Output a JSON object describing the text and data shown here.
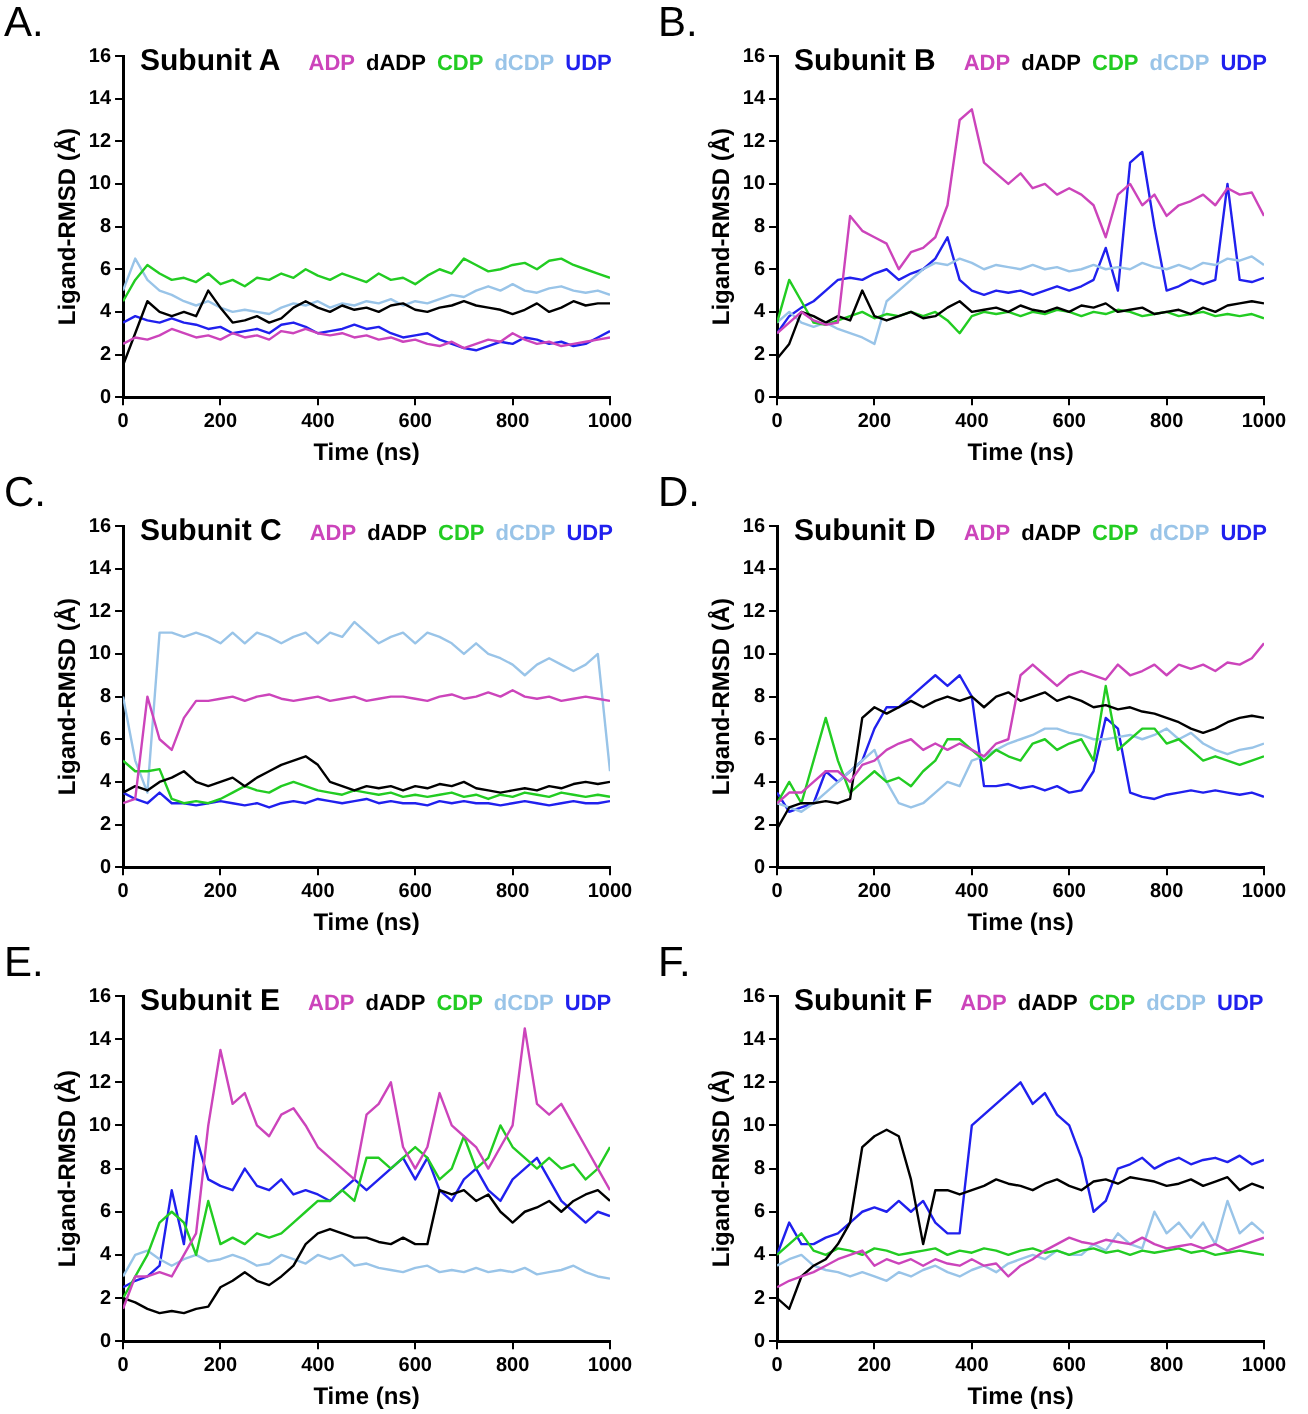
{
  "chart_data": [
    {
      "type": "line",
      "title": "Subunit A",
      "annotations": [
        "A."
      ],
      "xlabel": "Time (ns)",
      "ylabel": "Ligand-RMSD (Å)",
      "xlim": [
        0,
        1000
      ],
      "xticks": [
        0,
        200,
        400,
        600,
        800,
        1000
      ],
      "ylim": [
        0,
        16
      ],
      "yticks": [
        0,
        2,
        4,
        6,
        8,
        10,
        12,
        14,
        16
      ],
      "grid": false,
      "legend": "top",
      "marker": "none",
      "line_style": "solid",
      "x": [
        0,
        25,
        50,
        75,
        100,
        125,
        150,
        175,
        200,
        225,
        250,
        275,
        300,
        325,
        350,
        375,
        400,
        425,
        450,
        475,
        500,
        525,
        550,
        575,
        600,
        625,
        650,
        675,
        700,
        725,
        750,
        775,
        800,
        825,
        850,
        875,
        900,
        925,
        950,
        975,
        1000
      ],
      "series": [
        {
          "name": "ADP",
          "color": "#cc44bb",
          "values": [
            2.5,
            2.8,
            2.7,
            2.9,
            3.2,
            3.0,
            2.8,
            2.9,
            2.7,
            3.0,
            2.8,
            2.9,
            2.7,
            3.1,
            3.0,
            3.2,
            3.0,
            2.9,
            3.0,
            2.8,
            2.9,
            2.7,
            2.8,
            2.6,
            2.7,
            2.5,
            2.4,
            2.6,
            2.3,
            2.5,
            2.7,
            2.6,
            3.0,
            2.7,
            2.5,
            2.6,
            2.4,
            2.5,
            2.6,
            2.7,
            2.8
          ]
        },
        {
          "name": "dADP",
          "color": "#000000",
          "values": [
            1.5,
            3.0,
            4.5,
            4.0,
            3.8,
            4.0,
            3.8,
            5.0,
            4.2,
            3.5,
            3.6,
            3.8,
            3.5,
            3.7,
            4.2,
            4.5,
            4.2,
            4.0,
            4.3,
            4.1,
            4.2,
            4.0,
            4.3,
            4.4,
            4.1,
            4.0,
            4.2,
            4.3,
            4.5,
            4.3,
            4.2,
            4.1,
            3.9,
            4.1,
            4.4,
            4.0,
            4.2,
            4.5,
            4.3,
            4.4,
            4.4
          ]
        },
        {
          "name": "CDP",
          "color": "#22cc22",
          "values": [
            4.5,
            5.5,
            6.2,
            5.8,
            5.5,
            5.6,
            5.4,
            5.8,
            5.3,
            5.5,
            5.2,
            5.6,
            5.5,
            5.8,
            5.6,
            6.0,
            5.7,
            5.5,
            5.8,
            5.6,
            5.4,
            5.8,
            5.5,
            5.6,
            5.3,
            5.7,
            6.0,
            5.8,
            6.5,
            6.2,
            5.9,
            6.0,
            6.2,
            6.3,
            6.0,
            6.4,
            6.5,
            6.2,
            6.0,
            5.8,
            5.6
          ]
        },
        {
          "name": "dCDP",
          "color": "#99c4e8",
          "values": [
            5.0,
            6.5,
            5.5,
            5.0,
            4.8,
            4.5,
            4.3,
            4.5,
            4.2,
            4.0,
            4.1,
            4.0,
            3.9,
            4.2,
            4.4,
            4.3,
            4.5,
            4.2,
            4.4,
            4.3,
            4.5,
            4.4,
            4.6,
            4.3,
            4.5,
            4.4,
            4.6,
            4.8,
            4.7,
            5.0,
            5.2,
            5.0,
            5.3,
            5.0,
            4.9,
            5.1,
            5.2,
            5.0,
            4.9,
            5.0,
            4.8
          ]
        },
        {
          "name": "UDP",
          "color": "#2020ee",
          "values": [
            3.5,
            3.8,
            3.6,
            3.5,
            3.7,
            3.5,
            3.4,
            3.2,
            3.3,
            3.0,
            3.1,
            3.2,
            3.0,
            3.4,
            3.5,
            3.3,
            3.0,
            3.1,
            3.2,
            3.4,
            3.2,
            3.3,
            3.0,
            2.8,
            2.9,
            3.0,
            2.7,
            2.5,
            2.3,
            2.2,
            2.4,
            2.6,
            2.5,
            2.8,
            2.7,
            2.5,
            2.6,
            2.4,
            2.5,
            2.8,
            3.1
          ]
        }
      ]
    },
    {
      "type": "line",
      "title": "Subunit B",
      "annotations": [
        "B."
      ],
      "xlabel": "Time (ns)",
      "ylabel": "Ligand-RMSD (Å)",
      "xlim": [
        0,
        1000
      ],
      "xticks": [
        0,
        200,
        400,
        600,
        800,
        1000
      ],
      "ylim": [
        0,
        16
      ],
      "yticks": [
        0,
        2,
        4,
        6,
        8,
        10,
        12,
        14,
        16
      ],
      "grid": false,
      "legend": "top",
      "marker": "none",
      "line_style": "solid",
      "x": [
        0,
        25,
        50,
        75,
        100,
        125,
        150,
        175,
        200,
        225,
        250,
        275,
        300,
        325,
        350,
        375,
        400,
        425,
        450,
        475,
        500,
        525,
        550,
        575,
        600,
        625,
        650,
        675,
        700,
        725,
        750,
        775,
        800,
        825,
        850,
        875,
        900,
        925,
        950,
        975,
        1000
      ],
      "series": [
        {
          "name": "ADP",
          "color": "#cc44bb",
          "values": [
            3.0,
            3.5,
            4.0,
            3.6,
            3.4,
            3.5,
            8.5,
            7.8,
            7.5,
            7.2,
            6.0,
            6.8,
            7.0,
            7.5,
            9.0,
            13.0,
            13.5,
            11.0,
            10.5,
            10.0,
            10.5,
            9.8,
            10.0,
            9.5,
            9.8,
            9.5,
            9.0,
            7.5,
            9.5,
            10.0,
            9.0,
            9.5,
            8.5,
            9.0,
            9.2,
            9.5,
            9.0,
            9.8,
            9.5,
            9.6,
            8.5
          ]
        },
        {
          "name": "dADP",
          "color": "#000000",
          "values": [
            1.8,
            2.5,
            4.0,
            3.8,
            3.5,
            3.8,
            3.6,
            5.0,
            3.8,
            3.6,
            3.8,
            4.0,
            3.7,
            3.8,
            4.2,
            4.5,
            4.0,
            4.1,
            4.2,
            4.0,
            4.3,
            4.1,
            4.0,
            4.2,
            4.0,
            4.3,
            4.2,
            4.4,
            4.0,
            4.1,
            4.2,
            3.9,
            4.0,
            4.1,
            3.9,
            4.2,
            4.0,
            4.3,
            4.4,
            4.5,
            4.4
          ]
        },
        {
          "name": "CDP",
          "color": "#22cc22",
          "values": [
            3.5,
            5.5,
            4.5,
            3.5,
            3.4,
            3.6,
            3.8,
            4.0,
            3.7,
            3.9,
            3.8,
            4.0,
            3.8,
            4.0,
            3.6,
            3.0,
            3.8,
            4.0,
            3.9,
            4.0,
            3.8,
            4.0,
            3.9,
            4.1,
            4.0,
            3.8,
            4.0,
            3.9,
            4.1,
            4.0,
            3.8,
            3.9,
            4.0,
            3.8,
            3.9,
            4.0,
            3.8,
            3.9,
            3.8,
            3.9,
            3.7
          ]
        },
        {
          "name": "dCDP",
          "color": "#99c4e8",
          "values": [
            3.5,
            4.0,
            3.5,
            3.3,
            3.5,
            3.2,
            3.0,
            2.8,
            2.5,
            4.5,
            5.0,
            5.5,
            6.0,
            6.3,
            6.2,
            6.5,
            6.3,
            6.0,
            6.2,
            6.1,
            6.0,
            6.2,
            6.0,
            6.1,
            5.9,
            6.0,
            6.2,
            6.0,
            6.1,
            6.0,
            6.3,
            6.1,
            6.0,
            6.2,
            6.0,
            6.3,
            6.2,
            6.5,
            6.4,
            6.6,
            6.2
          ]
        },
        {
          "name": "UDP",
          "color": "#2020ee",
          "values": [
            3.0,
            3.8,
            4.2,
            4.5,
            5.0,
            5.5,
            5.6,
            5.5,
            5.8,
            6.0,
            5.5,
            5.8,
            6.0,
            6.5,
            7.5,
            5.5,
            5.0,
            4.8,
            5.0,
            4.9,
            5.0,
            4.8,
            5.0,
            5.2,
            5.0,
            5.2,
            5.5,
            7.0,
            5.0,
            11.0,
            11.5,
            8.0,
            5.0,
            5.2,
            5.5,
            5.3,
            5.5,
            10.0,
            5.5,
            5.4,
            5.6
          ]
        }
      ]
    },
    {
      "type": "line",
      "title": "Subunit C",
      "annotations": [
        "C."
      ],
      "xlabel": "Time (ns)",
      "ylabel": "Ligand-RMSD (Å)",
      "xlim": [
        0,
        1000
      ],
      "xticks": [
        0,
        200,
        400,
        600,
        800,
        1000
      ],
      "ylim": [
        0,
        16
      ],
      "yticks": [
        0,
        2,
        4,
        6,
        8,
        10,
        12,
        14,
        16
      ],
      "grid": false,
      "legend": "top",
      "marker": "none",
      "line_style": "solid",
      "x": [
        0,
        25,
        50,
        75,
        100,
        125,
        150,
        175,
        200,
        225,
        250,
        275,
        300,
        325,
        350,
        375,
        400,
        425,
        450,
        475,
        500,
        525,
        550,
        575,
        600,
        625,
        650,
        675,
        700,
        725,
        750,
        775,
        800,
        825,
        850,
        875,
        900,
        925,
        950,
        975,
        1000
      ],
      "series": [
        {
          "name": "ADP",
          "color": "#cc44bb",
          "values": [
            3.0,
            3.2,
            8.0,
            6.0,
            5.5,
            7.0,
            7.8,
            7.8,
            7.9,
            8.0,
            7.8,
            8.0,
            8.1,
            7.9,
            7.8,
            7.9,
            8.0,
            7.8,
            7.9,
            8.0,
            7.8,
            7.9,
            8.0,
            8.0,
            7.9,
            7.8,
            8.0,
            8.1,
            7.9,
            8.0,
            8.2,
            8.0,
            8.3,
            8.0,
            7.9,
            8.0,
            7.8,
            7.9,
            8.0,
            7.9,
            7.8
          ]
        },
        {
          "name": "dADP",
          "color": "#000000",
          "values": [
            3.5,
            3.8,
            3.6,
            4.0,
            4.2,
            4.5,
            4.0,
            3.8,
            4.0,
            4.2,
            3.8,
            4.2,
            4.5,
            4.8,
            5.0,
            5.2,
            4.8,
            4.0,
            3.8,
            3.6,
            3.8,
            3.7,
            3.8,
            3.6,
            3.8,
            3.7,
            3.9,
            3.8,
            4.0,
            3.7,
            3.6,
            3.5,
            3.6,
            3.7,
            3.6,
            3.8,
            3.7,
            3.9,
            4.0,
            3.9,
            4.0
          ]
        },
        {
          "name": "CDP",
          "color": "#22cc22",
          "values": [
            5.0,
            4.5,
            4.5,
            4.6,
            3.2,
            3.0,
            3.1,
            3.0,
            3.2,
            3.5,
            3.8,
            3.6,
            3.5,
            3.8,
            4.0,
            3.8,
            3.6,
            3.5,
            3.4,
            3.6,
            3.5,
            3.4,
            3.5,
            3.3,
            3.4,
            3.3,
            3.4,
            3.5,
            3.3,
            3.4,
            3.2,
            3.4,
            3.3,
            3.5,
            3.4,
            3.3,
            3.5,
            3.4,
            3.3,
            3.4,
            3.3
          ]
        },
        {
          "name": "dCDP",
          "color": "#99c4e8",
          "values": [
            8.0,
            5.0,
            3.5,
            11.0,
            11.0,
            10.8,
            11.0,
            10.8,
            10.5,
            11.0,
            10.5,
            11.0,
            10.8,
            10.5,
            10.8,
            11.0,
            10.5,
            11.0,
            10.8,
            11.5,
            11.0,
            10.5,
            10.8,
            11.0,
            10.5,
            11.0,
            10.8,
            10.5,
            10.0,
            10.5,
            10.0,
            9.8,
            9.5,
            9.0,
            9.5,
            9.8,
            9.5,
            9.2,
            9.5,
            10.0,
            4.5
          ]
        },
        {
          "name": "UDP",
          "color": "#2020ee",
          "values": [
            3.5,
            3.2,
            3.0,
            3.5,
            3.0,
            3.0,
            2.9,
            3.0,
            3.1,
            3.0,
            2.9,
            3.0,
            2.8,
            3.0,
            3.1,
            3.0,
            3.2,
            3.1,
            3.0,
            3.1,
            3.2,
            3.0,
            3.1,
            3.0,
            3.0,
            2.9,
            3.1,
            3.0,
            3.1,
            3.0,
            3.0,
            2.9,
            3.0,
            3.1,
            3.0,
            2.9,
            3.0,
            3.1,
            3.0,
            3.0,
            3.1
          ]
        }
      ]
    },
    {
      "type": "line",
      "title": "Subunit D",
      "annotations": [
        "D."
      ],
      "xlabel": "Time (ns)",
      "ylabel": "Ligand-RMSD (Å)",
      "xlim": [
        0,
        1000
      ],
      "xticks": [
        0,
        200,
        400,
        600,
        800,
        1000
      ],
      "ylim": [
        0,
        16
      ],
      "yticks": [
        0,
        2,
        4,
        6,
        8,
        10,
        12,
        14,
        16
      ],
      "grid": false,
      "legend": "top",
      "marker": "none",
      "line_style": "solid",
      "x": [
        0,
        25,
        50,
        75,
        100,
        125,
        150,
        175,
        200,
        225,
        250,
        275,
        300,
        325,
        350,
        375,
        400,
        425,
        450,
        475,
        500,
        525,
        550,
        575,
        600,
        625,
        650,
        675,
        700,
        725,
        750,
        775,
        800,
        825,
        850,
        875,
        900,
        925,
        950,
        975,
        1000
      ],
      "series": [
        {
          "name": "ADP",
          "color": "#cc44bb",
          "values": [
            3.0,
            3.5,
            3.5,
            4.0,
            4.5,
            4.5,
            4.0,
            4.8,
            5.0,
            5.5,
            5.8,
            6.0,
            5.5,
            5.8,
            5.5,
            5.8,
            5.5,
            5.2,
            5.8,
            6.0,
            9.0,
            9.5,
            9.0,
            8.5,
            9.0,
            9.2,
            9.0,
            8.8,
            9.5,
            9.0,
            9.2,
            9.5,
            9.0,
            9.5,
            9.3,
            9.5,
            9.2,
            9.6,
            9.5,
            9.8,
            10.5
          ]
        },
        {
          "name": "dADP",
          "color": "#000000",
          "values": [
            1.8,
            2.8,
            3.0,
            3.0,
            3.1,
            3.0,
            3.2,
            7.0,
            7.5,
            7.2,
            7.5,
            7.8,
            7.5,
            7.8,
            8.0,
            7.8,
            8.0,
            7.5,
            8.0,
            8.2,
            7.8,
            8.0,
            8.2,
            7.8,
            8.0,
            7.8,
            7.5,
            7.6,
            7.4,
            7.5,
            7.3,
            7.2,
            7.0,
            6.8,
            6.5,
            6.3,
            6.5,
            6.8,
            7.0,
            7.1,
            7.0
          ]
        },
        {
          "name": "CDP",
          "color": "#22cc22",
          "values": [
            3.0,
            4.0,
            3.0,
            5.0,
            7.0,
            5.0,
            3.5,
            4.0,
            4.5,
            4.0,
            4.2,
            3.8,
            4.5,
            5.0,
            6.0,
            6.0,
            5.5,
            5.0,
            5.5,
            5.2,
            5.0,
            5.8,
            6.0,
            5.5,
            5.8,
            6.0,
            5.0,
            8.5,
            5.5,
            6.0,
            6.5,
            6.5,
            5.8,
            6.0,
            5.5,
            5.0,
            5.2,
            5.0,
            4.8,
            5.0,
            5.2
          ]
        },
        {
          "name": "dCDP",
          "color": "#99c4e8",
          "values": [
            3.0,
            2.8,
            2.6,
            3.0,
            3.5,
            4.0,
            4.5,
            5.0,
            5.5,
            4.0,
            3.0,
            2.8,
            3.0,
            3.5,
            4.0,
            3.8,
            5.0,
            5.2,
            5.5,
            5.8,
            6.0,
            6.2,
            6.5,
            6.5,
            6.3,
            6.2,
            6.0,
            6.0,
            6.1,
            6.2,
            6.0,
            6.2,
            6.5,
            6.0,
            6.3,
            5.8,
            5.5,
            5.3,
            5.5,
            5.6,
            5.8
          ]
        },
        {
          "name": "UDP",
          "color": "#2020ee",
          "values": [
            3.5,
            2.6,
            2.8,
            3.0,
            4.5,
            4.0,
            4.5,
            5.0,
            6.5,
            7.5,
            7.5,
            8.0,
            8.5,
            9.0,
            8.5,
            9.0,
            8.0,
            3.8,
            3.8,
            3.9,
            3.7,
            3.8,
            3.6,
            3.8,
            3.5,
            3.6,
            4.5,
            7.0,
            6.5,
            3.5,
            3.3,
            3.2,
            3.4,
            3.5,
            3.6,
            3.5,
            3.6,
            3.5,
            3.4,
            3.5,
            3.3
          ]
        }
      ]
    },
    {
      "type": "line",
      "title": "Subunit E",
      "annotations": [
        "E."
      ],
      "xlabel": "Time (ns)",
      "ylabel": "Ligand-RMSD (Å)",
      "xlim": [
        0,
        1000
      ],
      "xticks": [
        0,
        200,
        400,
        600,
        800,
        1000
      ],
      "ylim": [
        0,
        16
      ],
      "yticks": [
        0,
        2,
        4,
        6,
        8,
        10,
        12,
        14,
        16
      ],
      "grid": false,
      "legend": "top",
      "marker": "none",
      "line_style": "solid",
      "x": [
        0,
        25,
        50,
        75,
        100,
        125,
        150,
        175,
        200,
        225,
        250,
        275,
        300,
        325,
        350,
        375,
        400,
        425,
        450,
        475,
        500,
        525,
        550,
        575,
        600,
        625,
        650,
        675,
        700,
        725,
        750,
        775,
        800,
        825,
        850,
        875,
        900,
        925,
        950,
        975,
        1000
      ],
      "series": [
        {
          "name": "ADP",
          "color": "#cc44bb",
          "values": [
            1.5,
            3.0,
            3.0,
            3.2,
            3.0,
            4.0,
            5.0,
            10.0,
            13.5,
            11.0,
            11.5,
            10.0,
            9.5,
            10.5,
            10.8,
            10.0,
            9.0,
            8.5,
            8.0,
            7.5,
            10.5,
            11.0,
            12.0,
            9.0,
            8.0,
            9.0,
            11.5,
            10.0,
            9.5,
            9.0,
            8.0,
            9.0,
            10.0,
            14.5,
            11.0,
            10.5,
            11.0,
            10.0,
            9.0,
            8.0,
            7.0
          ]
        },
        {
          "name": "dADP",
          "color": "#000000",
          "values": [
            2.0,
            1.8,
            1.5,
            1.3,
            1.4,
            1.3,
            1.5,
            1.6,
            2.5,
            2.8,
            3.2,
            2.8,
            2.6,
            3.0,
            3.5,
            4.5,
            5.0,
            5.2,
            5.0,
            4.8,
            4.8,
            4.6,
            4.5,
            4.8,
            4.5,
            4.5,
            7.0,
            6.8,
            7.0,
            6.5,
            6.8,
            6.0,
            5.5,
            6.0,
            6.2,
            6.5,
            6.0,
            6.5,
            6.8,
            7.0,
            6.5
          ]
        },
        {
          "name": "CDP",
          "color": "#22cc22",
          "values": [
            2.0,
            3.0,
            4.0,
            5.5,
            6.0,
            5.5,
            4.0,
            6.5,
            4.5,
            4.8,
            4.5,
            5.0,
            4.8,
            5.0,
            5.5,
            6.0,
            6.5,
            6.5,
            7.0,
            6.5,
            8.5,
            8.5,
            8.0,
            8.5,
            9.0,
            8.5,
            7.5,
            8.0,
            9.5,
            8.0,
            8.5,
            10.0,
            9.0,
            8.5,
            8.0,
            8.5,
            8.0,
            8.2,
            7.5,
            8.0,
            9.0
          ]
        },
        {
          "name": "dCDP",
          "color": "#99c4e8",
          "values": [
            3.0,
            4.0,
            4.2,
            3.8,
            3.5,
            3.8,
            4.0,
            3.7,
            3.8,
            4.0,
            3.8,
            3.5,
            3.6,
            4.0,
            3.8,
            3.6,
            4.0,
            3.8,
            4.0,
            3.5,
            3.6,
            3.4,
            3.3,
            3.2,
            3.4,
            3.5,
            3.2,
            3.3,
            3.2,
            3.4,
            3.2,
            3.3,
            3.2,
            3.4,
            3.1,
            3.2,
            3.3,
            3.5,
            3.2,
            3.0,
            2.9
          ]
        },
        {
          "name": "UDP",
          "color": "#2020ee",
          "values": [
            2.5,
            2.8,
            3.0,
            3.5,
            7.0,
            4.5,
            9.5,
            7.5,
            7.2,
            7.0,
            8.0,
            7.2,
            7.0,
            7.5,
            6.8,
            7.0,
            6.8,
            6.5,
            7.0,
            7.5,
            7.0,
            7.5,
            8.0,
            8.5,
            7.5,
            8.5,
            7.0,
            6.5,
            7.5,
            8.0,
            7.0,
            6.5,
            7.5,
            8.0,
            8.5,
            7.5,
            6.5,
            6.0,
            5.5,
            6.0,
            5.8
          ]
        }
      ]
    },
    {
      "type": "line",
      "title": "Subunit F",
      "annotations": [
        "F."
      ],
      "xlabel": "Time (ns)",
      "ylabel": "Ligand-RMSD (Å)",
      "xlim": [
        0,
        1000
      ],
      "xticks": [
        0,
        200,
        400,
        600,
        800,
        1000
      ],
      "ylim": [
        0,
        16
      ],
      "yticks": [
        0,
        2,
        4,
        6,
        8,
        10,
        12,
        14,
        16
      ],
      "grid": false,
      "legend": "top",
      "marker": "none",
      "line_style": "solid",
      "x": [
        0,
        25,
        50,
        75,
        100,
        125,
        150,
        175,
        200,
        225,
        250,
        275,
        300,
        325,
        350,
        375,
        400,
        425,
        450,
        475,
        500,
        525,
        550,
        575,
        600,
        625,
        650,
        675,
        700,
        725,
        750,
        775,
        800,
        825,
        850,
        875,
        900,
        925,
        950,
        975,
        1000
      ],
      "series": [
        {
          "name": "ADP",
          "color": "#cc44bb",
          "values": [
            2.5,
            2.8,
            3.0,
            3.2,
            3.5,
            3.8,
            4.0,
            4.2,
            3.5,
            3.8,
            3.6,
            3.8,
            3.5,
            3.8,
            3.6,
            3.5,
            3.8,
            3.5,
            3.6,
            3.0,
            3.5,
            3.8,
            4.2,
            4.5,
            4.8,
            4.6,
            4.5,
            4.7,
            4.6,
            4.5,
            4.8,
            4.5,
            4.3,
            4.4,
            4.5,
            4.3,
            4.5,
            4.2,
            4.4,
            4.6,
            4.8
          ]
        },
        {
          "name": "dADP",
          "color": "#000000",
          "values": [
            2.0,
            1.5,
            3.0,
            3.5,
            3.8,
            4.5,
            5.5,
            9.0,
            9.5,
            9.8,
            9.5,
            7.5,
            4.5,
            7.0,
            7.0,
            6.8,
            7.0,
            7.2,
            7.5,
            7.3,
            7.2,
            7.0,
            7.3,
            7.5,
            7.2,
            7.0,
            7.4,
            7.5,
            7.3,
            7.6,
            7.5,
            7.4,
            7.2,
            7.3,
            7.5,
            7.2,
            7.4,
            7.6,
            7.0,
            7.3,
            7.1
          ]
        },
        {
          "name": "CDP",
          "color": "#22cc22",
          "values": [
            4.0,
            4.5,
            5.0,
            4.2,
            4.0,
            4.3,
            4.2,
            4.0,
            4.3,
            4.2,
            4.0,
            4.1,
            4.2,
            4.3,
            4.0,
            4.2,
            4.1,
            4.3,
            4.2,
            4.0,
            4.2,
            4.3,
            4.1,
            4.2,
            4.0,
            4.2,
            4.3,
            4.1,
            4.2,
            4.0,
            4.2,
            4.1,
            4.2,
            4.3,
            4.1,
            4.2,
            4.0,
            4.1,
            4.2,
            4.1,
            4.0
          ]
        },
        {
          "name": "dCDP",
          "color": "#99c4e8",
          "values": [
            3.5,
            3.8,
            4.0,
            3.5,
            3.3,
            3.2,
            3.0,
            3.2,
            3.0,
            2.8,
            3.2,
            3.0,
            3.3,
            3.5,
            3.2,
            3.0,
            3.3,
            3.5,
            3.2,
            3.6,
            3.8,
            4.0,
            3.8,
            4.2,
            4.0,
            4.0,
            4.5,
            4.2,
            5.0,
            4.5,
            4.3,
            6.0,
            5.0,
            5.5,
            4.8,
            5.5,
            4.5,
            6.5,
            5.0,
            5.5,
            5.0
          ]
        },
        {
          "name": "UDP",
          "color": "#2020ee",
          "values": [
            4.0,
            5.5,
            4.5,
            4.5,
            4.8,
            5.0,
            5.5,
            6.0,
            6.2,
            6.0,
            6.5,
            6.0,
            6.5,
            5.5,
            5.0,
            5.0,
            10.0,
            10.5,
            11.0,
            11.5,
            12.0,
            11.0,
            11.5,
            10.5,
            10.0,
            8.5,
            6.0,
            6.5,
            8.0,
            8.2,
            8.5,
            8.0,
            8.3,
            8.5,
            8.2,
            8.4,
            8.5,
            8.3,
            8.6,
            8.2,
            8.4
          ]
        }
      ]
    }
  ]
}
